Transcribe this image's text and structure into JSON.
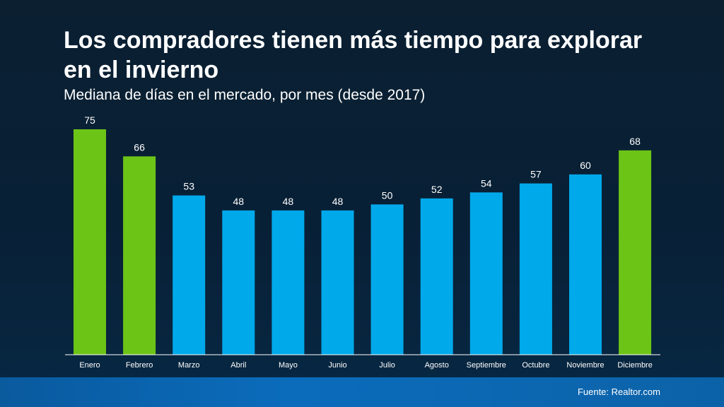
{
  "header": {
    "title": "Los compradores tienen más tiempo para explorar en el invierno",
    "subtitle": "Mediana de días en el mercado, por mes (desde 2017)"
  },
  "footer": {
    "source": "Fuente: Realtor.com"
  },
  "colors": {
    "highlight": "#6cc417",
    "normal": "#00a9ea",
    "background": "#0b1f31",
    "axis": "#ffffff"
  },
  "chart_data": {
    "type": "bar",
    "title": "Los compradores tienen más tiempo para explorar en el invierno",
    "subtitle": "Mediana de días en el mercado, por mes (desde 2017)",
    "categories": [
      "Enero",
      "Febrero",
      "Marzo",
      "Abril",
      "Mayo",
      "Junio",
      "Julio",
      "Agosto",
      "Septiembre",
      "Octubre",
      "Noviembre",
      "Diciembre"
    ],
    "values": [
      75,
      66,
      53,
      48,
      48,
      48,
      50,
      52,
      54,
      57,
      60,
      68
    ],
    "highlighted": [
      "Enero",
      "Febrero",
      "Diciembre"
    ],
    "data_labels": true,
    "ylim": [
      0,
      75
    ],
    "grid": false,
    "legend": "none"
  }
}
